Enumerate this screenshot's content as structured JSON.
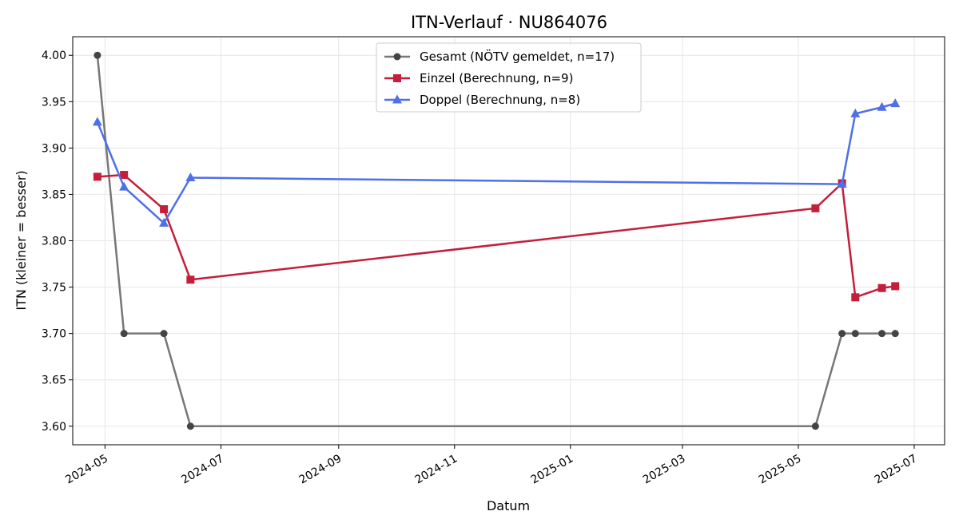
{
  "chart_data": {
    "type": "line",
    "title": "ITN-Verlauf · NU864076",
    "xlabel": "Datum",
    "ylabel": "ITN  (kleiner = besser)",
    "xlim": [
      "2024-04-14",
      "2025-07-17"
    ],
    "ylim": [
      3.58,
      4.02
    ],
    "x_ticks": [
      "2024-05-01",
      "2024-07-01",
      "2024-09-01",
      "2024-11-01",
      "2025-01-01",
      "2025-03-01",
      "2025-05-01",
      "2025-07-01"
    ],
    "x_tick_labels": [
      "2024-05",
      "2024-07",
      "2024-09",
      "2024-11",
      "2025-01",
      "2025-03",
      "2025-05",
      "2025-07"
    ],
    "y_ticks": [
      3.6,
      3.65,
      3.7,
      3.75,
      3.8,
      3.85,
      3.9,
      3.95,
      4.0
    ],
    "y_tick_labels": [
      "3.60",
      "3.65",
      "3.70",
      "3.75",
      "3.80",
      "3.85",
      "3.90",
      "3.95",
      "4.00"
    ],
    "grid": true,
    "legend": "top-center",
    "series": [
      {
        "name": "Gesamt (NÖTV gemeldet, n=17)",
        "color": "#777777",
        "marker_color": "#444444",
        "marker": "circle",
        "points": [
          [
            "2024-04-27",
            4.0
          ],
          [
            "2024-05-11",
            3.7
          ],
          [
            "2024-06-01",
            3.7
          ],
          [
            "2024-06-15",
            3.6
          ],
          [
            "2025-05-10",
            3.6
          ],
          [
            "2025-05-24",
            3.7
          ],
          [
            "2025-05-31",
            3.7
          ],
          [
            "2025-06-14",
            3.7
          ],
          [
            "2025-06-21",
            3.7
          ]
        ]
      },
      {
        "name": "Einzel (Berechnung, n=9)",
        "color": "#c41e3a",
        "marker_color": "#c41e3a",
        "marker": "square",
        "points": [
          [
            "2024-04-27",
            3.869
          ],
          [
            "2024-05-11",
            3.871
          ],
          [
            "2024-06-01",
            3.834
          ],
          [
            "2024-06-15",
            3.758
          ],
          [
            "2025-05-10",
            3.835
          ],
          [
            "2025-05-24",
            3.862
          ],
          [
            "2025-05-31",
            3.739
          ],
          [
            "2025-06-14",
            3.749
          ],
          [
            "2025-06-21",
            3.751
          ]
        ]
      },
      {
        "name": "Doppel (Berechnung, n=8)",
        "color": "#4f6fe8",
        "marker_color": "#4f6fe8",
        "marker": "triangle",
        "points": [
          [
            "2024-04-27",
            3.928
          ],
          [
            "2024-05-11",
            3.858
          ],
          [
            "2024-06-01",
            3.819
          ],
          [
            "2024-06-15",
            3.868
          ],
          [
            "2025-05-24",
            3.861
          ],
          [
            "2025-05-31",
            3.937
          ],
          [
            "2025-06-14",
            3.944
          ],
          [
            "2025-06-21",
            3.948
          ]
        ]
      }
    ]
  }
}
